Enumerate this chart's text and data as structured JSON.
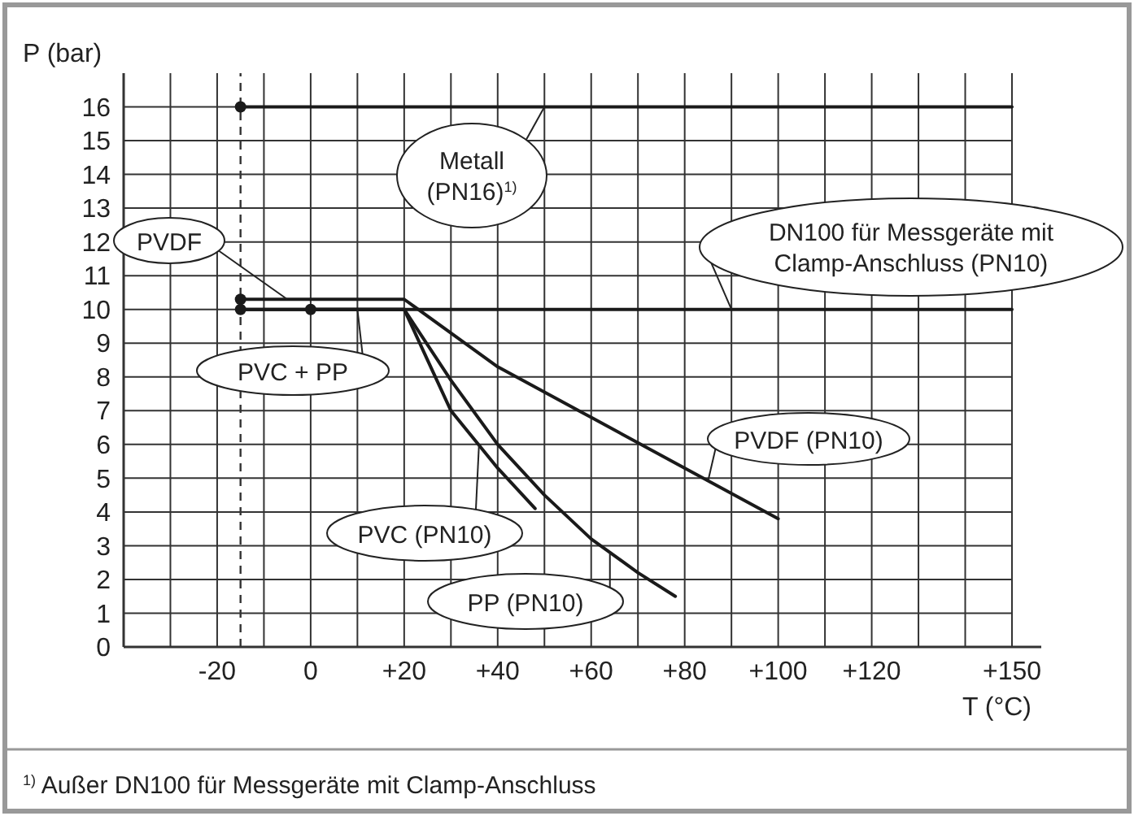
{
  "chart_data": {
    "type": "line",
    "xlabel": "T (°C)",
    "ylabel": "P (bar)",
    "xlim": [
      -40,
      150
    ],
    "xticks": [
      {
        "value": -40,
        "label": null
      },
      {
        "value": -30,
        "label": null
      },
      -20,
      {
        "value": -10,
        "label": null
      },
      0,
      {
        "value": 10,
        "label": null
      },
      {
        "value": 20,
        "label": "+20"
      },
      {
        "value": 30,
        "label": null
      },
      {
        "value": 40,
        "label": "+40"
      },
      {
        "value": 50,
        "label": null
      },
      {
        "value": 60,
        "label": "+60"
      },
      {
        "value": 70,
        "label": null
      },
      {
        "value": 80,
        "label": "+80"
      },
      {
        "value": 90,
        "label": null
      },
      {
        "value": 100,
        "label": "+100"
      },
      {
        "value": 110,
        "label": null
      },
      {
        "value": 120,
        "label": "+120"
      },
      {
        "value": 130,
        "label": null
      },
      {
        "value": 140,
        "label": null
      },
      {
        "value": 150,
        "label": "+150"
      }
    ],
    "ylim": [
      0,
      17
    ],
    "yticks": [
      0,
      1,
      2,
      3,
      4,
      5,
      6,
      7,
      8,
      9,
      10,
      11,
      12,
      13,
      14,
      15,
      16
    ],
    "grid": true,
    "line_style": "solid",
    "series": [
      {
        "name": "Metall (PN16)$^{1)}$",
        "color": "#1a1a1a",
        "x": [
          -15,
          150
        ],
        "values": [
          16,
          16
        ]
      },
      {
        "name": "DN100 für Messgeräte mit Clamp-Anschluss (PN10)",
        "color": "#1a1a1a",
        "x": [
          -15,
          150
        ],
        "values": [
          10,
          10
        ]
      },
      {
        "name": "PVDF (PN10)",
        "color": "#1a1a1a",
        "x": [
          -15,
          20,
          40,
          60,
          80,
          100
        ],
        "values": [
          10.3,
          10.3,
          8.3,
          6.8,
          5.3,
          3.8
        ]
      },
      {
        "name": "PVC (PN10)",
        "color": "#1a1a1a",
        "x": [
          -15,
          20,
          30,
          40,
          48
        ],
        "values": [
          10,
          10,
          7.0,
          5.3,
          4.1
        ]
      },
      {
        "name": "PP (PN10)",
        "color": "#1a1a1a",
        "x": [
          0,
          20,
          30,
          40,
          50,
          60,
          70,
          78
        ],
        "values": [
          10,
          10,
          7.9,
          6.0,
          4.5,
          3.2,
          2.2,
          1.5
        ]
      },
      {
        "type": "scatter",
        "marker": "circle",
        "color": "#1a1a1a",
        "x": [
          -15,
          -15,
          -15,
          0
        ],
        "values": [
          16,
          10.3,
          10,
          10
        ]
      }
    ],
    "ref_lines": [
      {
        "axis": "x",
        "value": -15,
        "line_style": "dashed",
        "color": "#333333"
      }
    ],
    "annotations": [
      {
        "text": "PVDF",
        "x": -5,
        "y": 10.3
      },
      {
        "text": "PVC + PP",
        "x": 10,
        "y": 10
      },
      "$^{1)}$ Außer DN100 für Messgeräte mit Clamp-Anschluss"
    ]
  }
}
